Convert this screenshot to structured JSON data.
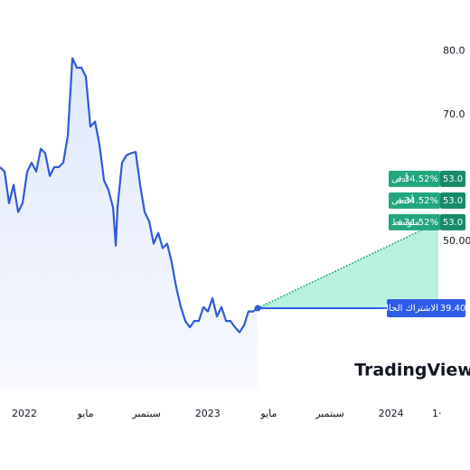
{
  "chart_data": {
    "type": "line",
    "color": "#2f5bd6",
    "x": [
      -1.6,
      -1.3,
      -1.01,
      -0.71,
      -0.41,
      -0.12,
      0.18,
      0.47,
      0.77,
      1.07,
      1.36,
      1.66,
      1.95,
      2.25,
      2.54,
      2.84,
      3.14,
      3.43,
      3.73,
      4.02,
      4.32,
      4.62,
      4.91,
      5.21,
      5.5,
      5.8,
      5.98,
      6.09,
      6.39,
      6.69,
      6.98,
      7.28,
      7.57,
      7.87,
      8.17,
      8.46,
      8.76,
      9.05,
      9.35,
      9.64,
      9.94,
      10.24,
      10.53,
      10.83,
      11.12,
      11.42,
      11.72,
      12.01,
      12.31,
      12.6,
      12.9,
      13.2,
      13.49,
      13.79,
      14.08,
      14.38,
      14.67,
      14.97,
      15.27
    ],
    "values": [
      61.7,
      61.0,
      56.0,
      58.9,
      54.6,
      56.0,
      61.0,
      62.4,
      61.0,
      64.6,
      63.9,
      60.3,
      61.7,
      61.7,
      62.4,
      66.7,
      78.9,
      77.4,
      77.4,
      76.0,
      68.1,
      68.9,
      65.3,
      59.6,
      58.1,
      55.3,
      49.3,
      55.3,
      62.4,
      63.6,
      63.9,
      64.1,
      58.9,
      54.6,
      53.1,
      49.6,
      51.3,
      48.9,
      49.6,
      46.7,
      42.7,
      39.6,
      37.4,
      36.4,
      37.4,
      37.4,
      39.6,
      38.9,
      41.0,
      38.1,
      39.6,
      37.4,
      37.4,
      36.4,
      35.6,
      36.7,
      38.9,
      38.9,
      39.4
    ],
    "xlim": [
      -1.6,
      27.1
    ],
    "ylim": [
      26.7,
      88.1
    ],
    "xticks": [
      {
        "value": 0,
        "label": "2022"
      },
      {
        "value": 4,
        "label": "مايو"
      },
      {
        "value": 8,
        "label": "سبتمبر"
      },
      {
        "value": 12,
        "label": "2023"
      },
      {
        "value": 16,
        "label": "مايو"
      },
      {
        "value": 20,
        "label": "سبتمبر"
      },
      {
        "value": 24,
        "label": "2024"
      },
      {
        "value": 27,
        "label": "1·"
      }
    ],
    "yticks": [
      {
        "value": 80,
        "label": "80.0"
      },
      {
        "value": 70,
        "label": "70.0"
      },
      {
        "value": 50,
        "label": "50.00"
      }
    ],
    "forecast": {
      "color": "#22a67e",
      "area_color": "#b4f0df",
      "targets": [
        {
          "name": "أدنى",
          "change": "+34.52%",
          "value": 53,
          "value_label": "53.0"
        },
        {
          "name": "أقصى",
          "change": "+34.52%",
          "value": 53,
          "value_label": "53.0"
        },
        {
          "name": "متوسط",
          "change": "+34.52%",
          "value": 53,
          "value_label": "53.0"
        }
      ]
    },
    "current": {
      "label": "الاشتراك الحالي",
      "value": 39.4,
      "value_label": "39.40",
      "color": "#2f5bea"
    },
    "watermark": "TradingView"
  }
}
